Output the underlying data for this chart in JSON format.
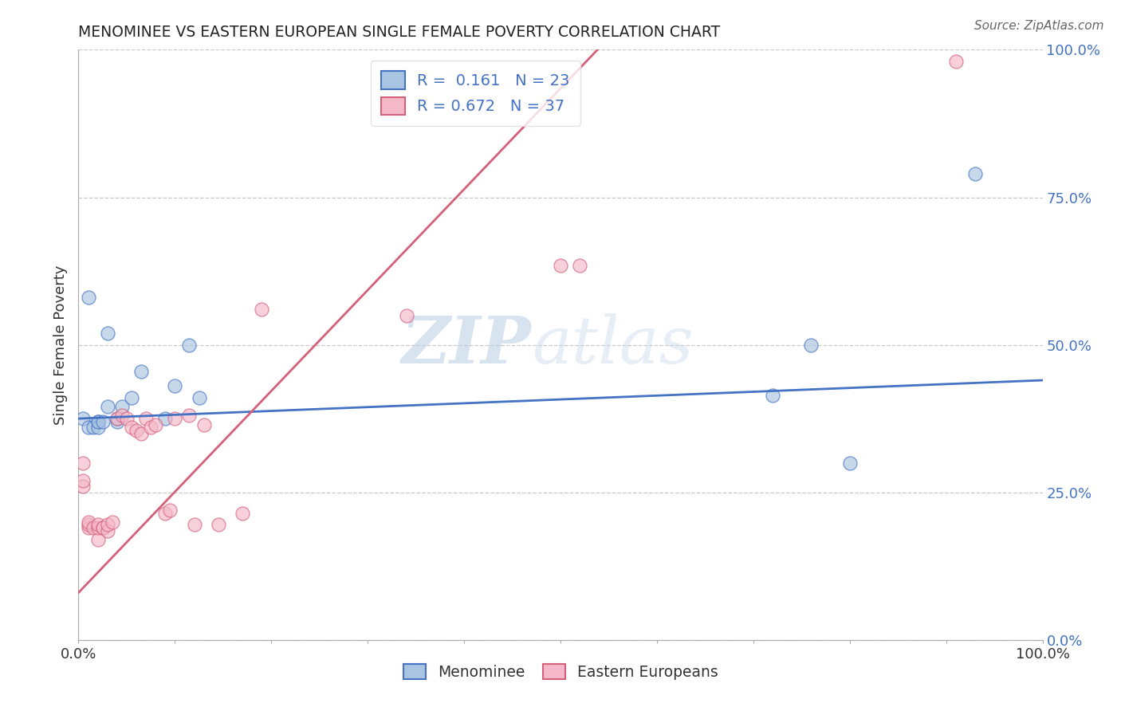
{
  "title": "MENOMINEE VS EASTERN EUROPEAN SINGLE FEMALE POVERTY CORRELATION CHART",
  "source": "Source: ZipAtlas.com",
  "ylabel": "Single Female Poverty",
  "xlim": [
    0,
    1
  ],
  "ylim": [
    0,
    1
  ],
  "menominee_R": "0.161",
  "menominee_N": "23",
  "eastern_R": "0.672",
  "eastern_N": "37",
  "menominee_color": "#a8c4e0",
  "eastern_color": "#f4b8c8",
  "menominee_line_color": "#4472c4",
  "eastern_line_color": "#d4607a",
  "menominee_x": [
    0.005,
    0.01,
    0.01,
    0.015,
    0.02,
    0.02,
    0.02,
    0.025,
    0.03,
    0.03,
    0.04,
    0.04,
    0.045,
    0.055,
    0.065,
    0.09,
    0.1,
    0.115,
    0.125,
    0.72,
    0.76,
    0.8,
    0.93
  ],
  "menominee_y": [
    0.375,
    0.58,
    0.36,
    0.36,
    0.37,
    0.36,
    0.37,
    0.37,
    0.395,
    0.52,
    0.37,
    0.375,
    0.395,
    0.41,
    0.455,
    0.375,
    0.43,
    0.5,
    0.41,
    0.415,
    0.5,
    0.3,
    0.79
  ],
  "eastern_x": [
    0.005,
    0.005,
    0.005,
    0.01,
    0.01,
    0.01,
    0.015,
    0.02,
    0.02,
    0.02,
    0.025,
    0.025,
    0.03,
    0.03,
    0.035,
    0.04,
    0.045,
    0.05,
    0.055,
    0.06,
    0.065,
    0.07,
    0.075,
    0.08,
    0.09,
    0.095,
    0.1,
    0.115,
    0.12,
    0.13,
    0.145,
    0.17,
    0.19,
    0.34,
    0.5,
    0.52,
    0.91
  ],
  "eastern_y": [
    0.3,
    0.26,
    0.27,
    0.19,
    0.195,
    0.2,
    0.19,
    0.17,
    0.19,
    0.195,
    0.19,
    0.19,
    0.185,
    0.195,
    0.2,
    0.375,
    0.38,
    0.375,
    0.36,
    0.355,
    0.35,
    0.375,
    0.36,
    0.365,
    0.215,
    0.22,
    0.375,
    0.38,
    0.195,
    0.365,
    0.195,
    0.215,
    0.56,
    0.55,
    0.635,
    0.635,
    0.98
  ],
  "menominee_trend_x": [
    0.0,
    1.0
  ],
  "menominee_trend_y": [
    0.375,
    0.44
  ],
  "eastern_trend_x": [
    0.0,
    0.55
  ],
  "eastern_trend_y": [
    0.08,
    1.02
  ],
  "legend1_r": "R = ",
  "legend1_r_val": " 0.161",
  "legend1_n": "  N = ",
  "legend1_n_val": "23",
  "legend2_r": "R = ",
  "legend2_r_val": "0.672",
  "legend2_n": "  N = ",
  "legend2_n_val": "37",
  "tick_color": "#4472c4",
  "grid_color": "#c8c8c8",
  "ytick_labels": [
    "0.0%",
    "25.0%",
    "50.0%",
    "75.0%",
    "100.0%"
  ],
  "xtick_labels_left": "0.0%",
  "xtick_labels_right": "100.0%"
}
